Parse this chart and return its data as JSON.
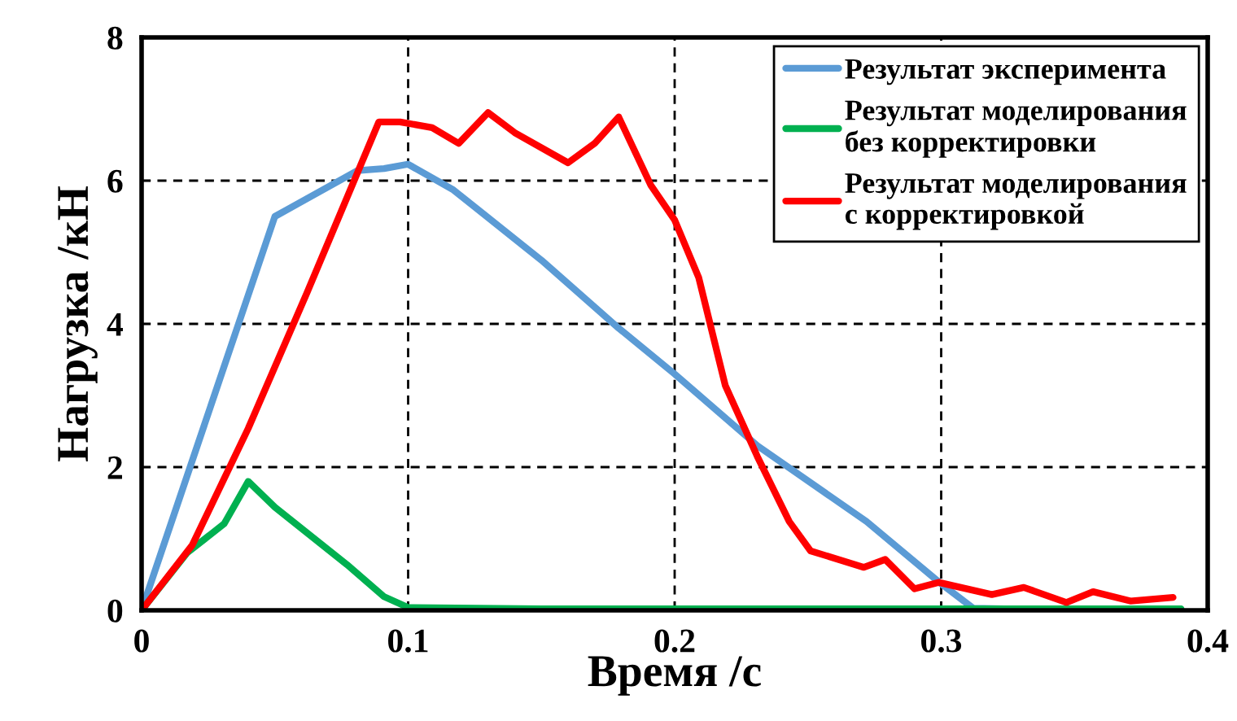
{
  "chart_data": {
    "type": "line",
    "xlabel": "Время /с",
    "ylabel": "Нагрузка /кН",
    "xlim": [
      0,
      0.4
    ],
    "ylim": [
      0,
      8
    ],
    "xticks": [
      0,
      0.1,
      0.2,
      0.3,
      0.4
    ],
    "yticks": [
      0,
      2,
      4,
      6,
      8
    ],
    "grid": true,
    "legend": "top right",
    "line_style": "solid",
    "marker": "none",
    "series": [
      {
        "name": "Результат эксперимента",
        "color": "#5b9bd5",
        "x": [
          0,
          0.05,
          0.081,
          0.091,
          0.1,
          0.117,
          0.15,
          0.179,
          0.2,
          0.231,
          0.272,
          0.3,
          0.312,
          0.35,
          0.39
        ],
        "values": [
          0,
          5.5,
          6.14,
          6.17,
          6.23,
          5.87,
          4.89,
          3.94,
          3.3,
          2.3,
          1.24,
          0.37,
          0.03,
          0,
          0
        ]
      },
      {
        "name": "Результат моделирования\nбез корректировки",
        "color": "#00b050",
        "x": [
          0,
          0.017,
          0.031,
          0.04,
          0.05,
          0.077,
          0.091,
          0.1,
          0.15,
          0.2,
          0.25,
          0.3,
          0.35,
          0.39
        ],
        "values": [
          0,
          0.8,
          1.21,
          1.8,
          1.44,
          0.64,
          0.19,
          0.04,
          0.02,
          0.02,
          0.02,
          0.02,
          0.02,
          0.02
        ]
      },
      {
        "name": "Результат моделирования\nс корректировкой",
        "color": "#ff0000",
        "x": [
          0,
          0.019,
          0.04,
          0.062,
          0.089,
          0.097,
          0.109,
          0.119,
          0.13,
          0.14,
          0.16,
          0.17,
          0.179,
          0.191,
          0.2,
          0.209,
          0.219,
          0.231,
          0.243,
          0.251,
          0.271,
          0.279,
          0.29,
          0.299,
          0.319,
          0.331,
          0.347,
          0.357,
          0.371,
          0.387
        ],
        "values": [
          0,
          0.91,
          2.54,
          4.43,
          6.82,
          6.82,
          6.74,
          6.52,
          6.95,
          6.67,
          6.25,
          6.52,
          6.89,
          5.94,
          5.45,
          4.65,
          3.14,
          2.15,
          1.24,
          0.83,
          0.6,
          0.71,
          0.3,
          0.39,
          0.22,
          0.32,
          0.11,
          0.26,
          0.13,
          0.18
        ]
      }
    ]
  }
}
